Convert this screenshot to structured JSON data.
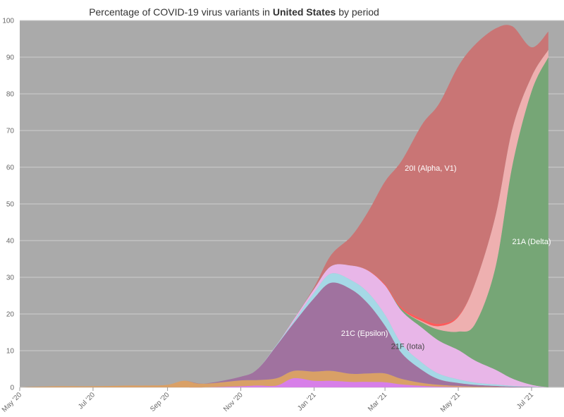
{
  "chart_data": {
    "type": "area",
    "stacked": true,
    "title_parts": [
      "Percentage of COVID-19 virus variants in ",
      "United States",
      " by period"
    ],
    "ylim": [
      0,
      100
    ],
    "yticks": [
      0,
      10,
      20,
      30,
      40,
      50,
      60,
      70,
      80,
      90,
      100
    ],
    "x": [
      "2020-05-01",
      "2020-06-01",
      "2020-07-01",
      "2020-08-01",
      "2020-08-15",
      "2020-09-01",
      "2020-09-15",
      "2020-10-01",
      "2020-11-01",
      "2020-11-15",
      "2020-12-01",
      "2020-12-15",
      "2021-01-01",
      "2021-01-15",
      "2021-02-01",
      "2021-02-15",
      "2021-03-01",
      "2021-03-15",
      "2021-04-01",
      "2021-04-15",
      "2021-05-01",
      "2021-05-15",
      "2021-06-01",
      "2021-06-15",
      "2021-07-01",
      "2021-07-15"
    ],
    "xticks": [
      {
        "date": "2020-05-01",
        "label": "May '20"
      },
      {
        "date": "2020-07-01",
        "label": "Jul '20"
      },
      {
        "date": "2020-09-01",
        "label": "Sep '20"
      },
      {
        "date": "2020-11-01",
        "label": "Nov '20"
      },
      {
        "date": "2021-01-01",
        "label": "Jan '21"
      },
      {
        "date": "2021-03-01",
        "label": "Mar '21"
      },
      {
        "date": "2021-05-01",
        "label": "May '21"
      },
      {
        "date": "2021-07-01",
        "label": "Jul '21"
      }
    ],
    "grid": true,
    "background": "#aaaaaa",
    "series": [
      {
        "name": "",
        "color": "#d77fe8",
        "values": [
          0,
          0,
          0,
          0,
          0,
          0,
          0,
          0,
          0.3,
          0.5,
          0.5,
          2.5,
          1.8,
          1.8,
          1.5,
          1.5,
          1.4,
          0.8,
          0.4,
          0.2,
          0.1,
          0,
          0,
          0,
          0,
          0
        ]
      },
      {
        "name": "",
        "color": "#d9a066",
        "values": [
          0,
          0.3,
          0.3,
          0.5,
          0.5,
          0.7,
          1.8,
          1,
          1.6,
          1.5,
          2,
          2,
          2.5,
          2.7,
          2.2,
          2.3,
          2.4,
          1.5,
          0.8,
          0.5,
          0.3,
          0.2,
          0.1,
          0,
          0,
          0
        ]
      },
      {
        "name": "21C (Epsilon)",
        "color": "#a0729f",
        "values": [
          0,
          0,
          0,
          0,
          0,
          0,
          0,
          0,
          1,
          3,
          9,
          13,
          20,
          24,
          23,
          19,
          13,
          7,
          3.5,
          1.5,
          0.8,
          0.5,
          0.3,
          0.2,
          0.1,
          0
        ]
      },
      {
        "name": "",
        "color": "#a5d8e6",
        "values": [
          0,
          0,
          0,
          0,
          0,
          0,
          0,
          0,
          0,
          0,
          0.2,
          0.5,
          1.5,
          2.5,
          2.5,
          3,
          3,
          2.5,
          2,
          1.5,
          1,
          0.6,
          0.4,
          0.2,
          0.1,
          0
        ]
      },
      {
        "name": "21F (Iota)",
        "color": "#e8b6e8",
        "values": [
          0,
          0,
          0,
          0,
          0,
          0,
          0,
          0,
          0,
          0,
          0,
          0.5,
          1,
          2,
          4,
          6,
          8,
          9,
          9.5,
          9,
          8,
          6,
          4,
          2,
          0.5,
          0
        ]
      },
      {
        "name": "21A (Delta)",
        "color": "#76a676",
        "values": [
          0,
          0,
          0,
          0,
          0,
          0,
          0,
          0,
          0,
          0,
          0,
          0,
          0,
          0,
          0,
          0,
          0,
          0.5,
          1.5,
          3,
          5,
          10,
          28,
          58,
          80,
          90
        ]
      },
      {
        "name": "",
        "color": "#eeb0b0",
        "values": [
          0,
          0,
          0,
          0,
          0,
          0,
          0,
          0,
          0,
          0,
          0,
          0,
          0,
          0,
          0,
          0,
          0,
          0,
          0.3,
          1,
          4,
          11,
          14,
          10,
          4,
          2
        ]
      },
      {
        "name": "",
        "color": "#ff5a5a",
        "values": [
          0,
          0,
          0,
          0,
          0,
          0,
          0,
          0,
          0,
          0,
          0,
          0,
          0,
          0,
          0,
          0.1,
          0.3,
          0.5,
          0.7,
          0.6,
          0.3,
          0.1,
          0,
          0,
          0,
          0
        ]
      },
      {
        "name": "20I (Alpha, V1)",
        "color": "#c97575",
        "values": [
          0,
          0,
          0,
          0,
          0,
          0,
          0,
          0,
          0,
          0,
          0,
          0,
          0.5,
          3,
          8,
          16,
          28,
          40,
          53,
          60,
          68,
          65,
          51,
          28,
          8,
          5
        ]
      }
    ],
    "area_labels": [
      {
        "series": "20I (Alpha, V1)",
        "text": "20I (Alpha, V1)",
        "date": "2021-04-08",
        "value": 59,
        "color": "#ffffff"
      },
      {
        "series": "21A (Delta)",
        "text": "21A (Delta)",
        "date": "2021-07-01",
        "value": 39,
        "color": "#ffffff"
      },
      {
        "series": "21C (Epsilon)",
        "text": "21C (Epsilon)",
        "date": "2021-02-12",
        "value": 14,
        "color": "#ffffff"
      },
      {
        "series": "21F (Iota)",
        "text": "21F (Iota)",
        "date": "2021-03-20",
        "value": 10.5,
        "color": "#444444"
      }
    ]
  }
}
